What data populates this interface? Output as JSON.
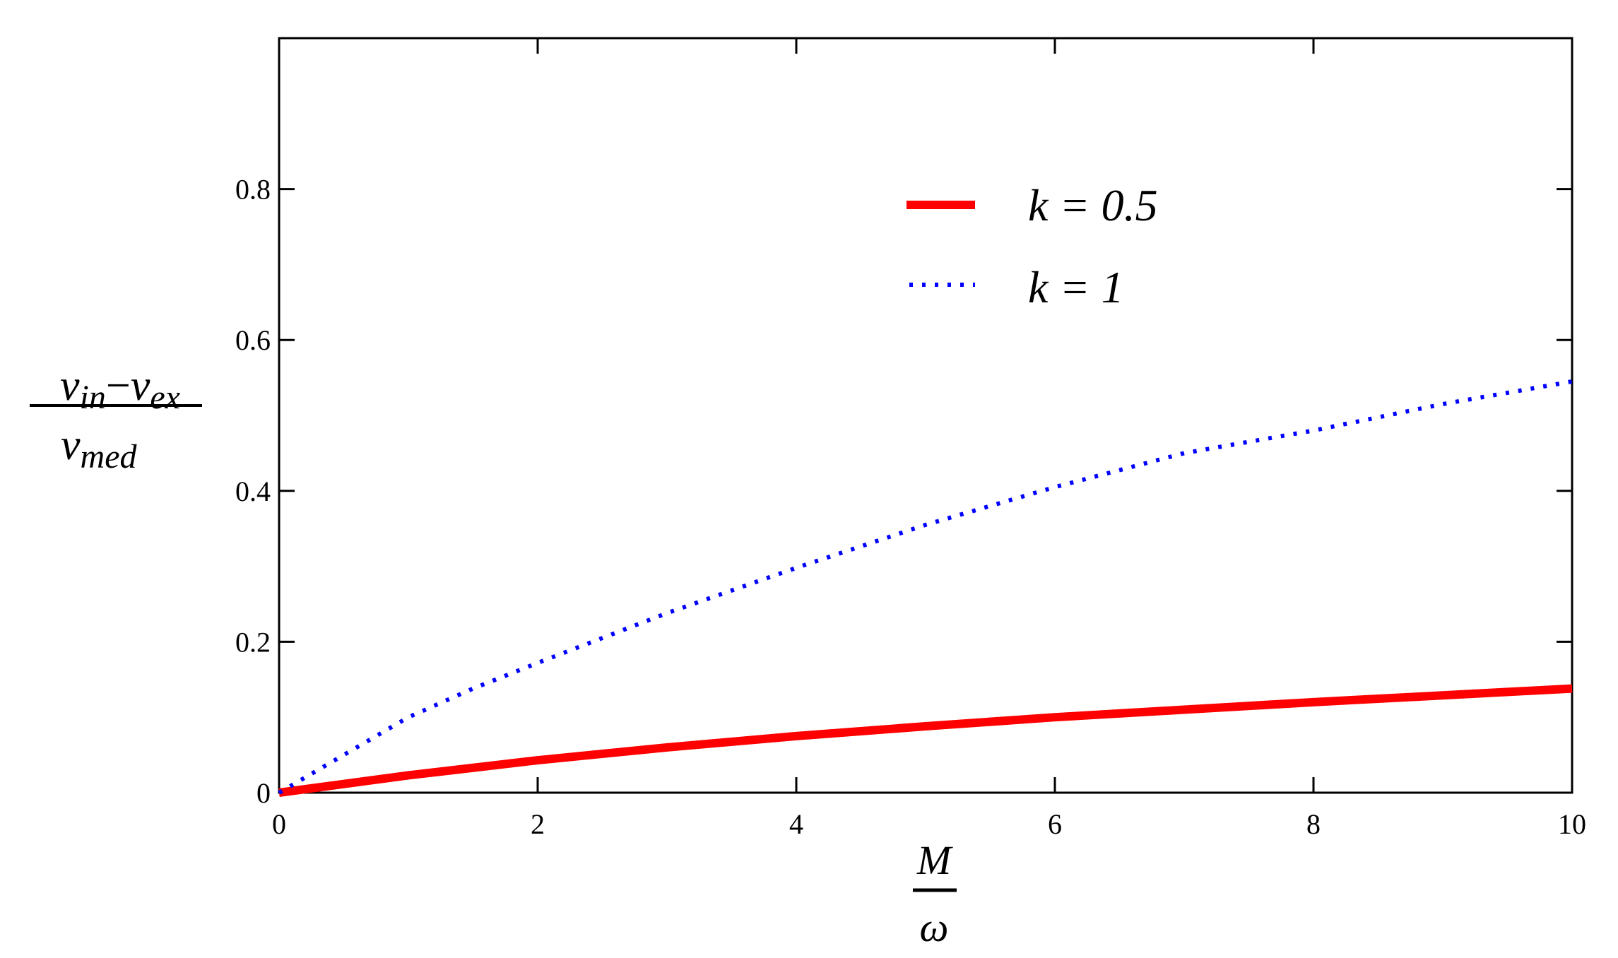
{
  "chart_data": {
    "type": "line",
    "title": "",
    "xlabel": {
      "numerator": "M",
      "denominator": "ω"
    },
    "ylabel": {
      "numerator_a": "v",
      "numerator_a_sub": "in",
      "minus": "−",
      "numerator_b": "v",
      "numerator_b_sub": "ex",
      "denominator": "v",
      "denominator_sub": "med"
    },
    "xlim": [
      0,
      10
    ],
    "ylim": [
      0,
      1
    ],
    "xticks": [
      0,
      2,
      4,
      6,
      8,
      10
    ],
    "xtick_labels": [
      "0",
      "2",
      "4",
      "6",
      "8",
      "10"
    ],
    "yticks": [
      0,
      0.2,
      0.4,
      0.6,
      0.8
    ],
    "ytick_labels": [
      "0",
      "0.2",
      "0.4",
      "0.6",
      "0.8"
    ],
    "grid": false,
    "legend_position": "top-center",
    "series": [
      {
        "name": "k = 0.5",
        "color": "#ff0000",
        "style": "solid",
        "x": [
          0,
          1,
          2,
          3,
          4,
          5,
          6,
          7,
          8,
          9,
          10
        ],
        "y": [
          0,
          0.023,
          0.043,
          0.06,
          0.075,
          0.088,
          0.1,
          0.11,
          0.12,
          0.129,
          0.138
        ]
      },
      {
        "name": "k = 1",
        "color": "#0000ff",
        "style": "dotted",
        "x": [
          0,
          0.5,
          1,
          1.5,
          2,
          3,
          4,
          5,
          6,
          7,
          8,
          9,
          10
        ],
        "y": [
          0,
          0.05,
          0.1,
          0.138,
          0.172,
          0.238,
          0.298,
          0.355,
          0.405,
          0.45,
          0.48,
          0.515,
          0.545
        ]
      }
    ]
  }
}
